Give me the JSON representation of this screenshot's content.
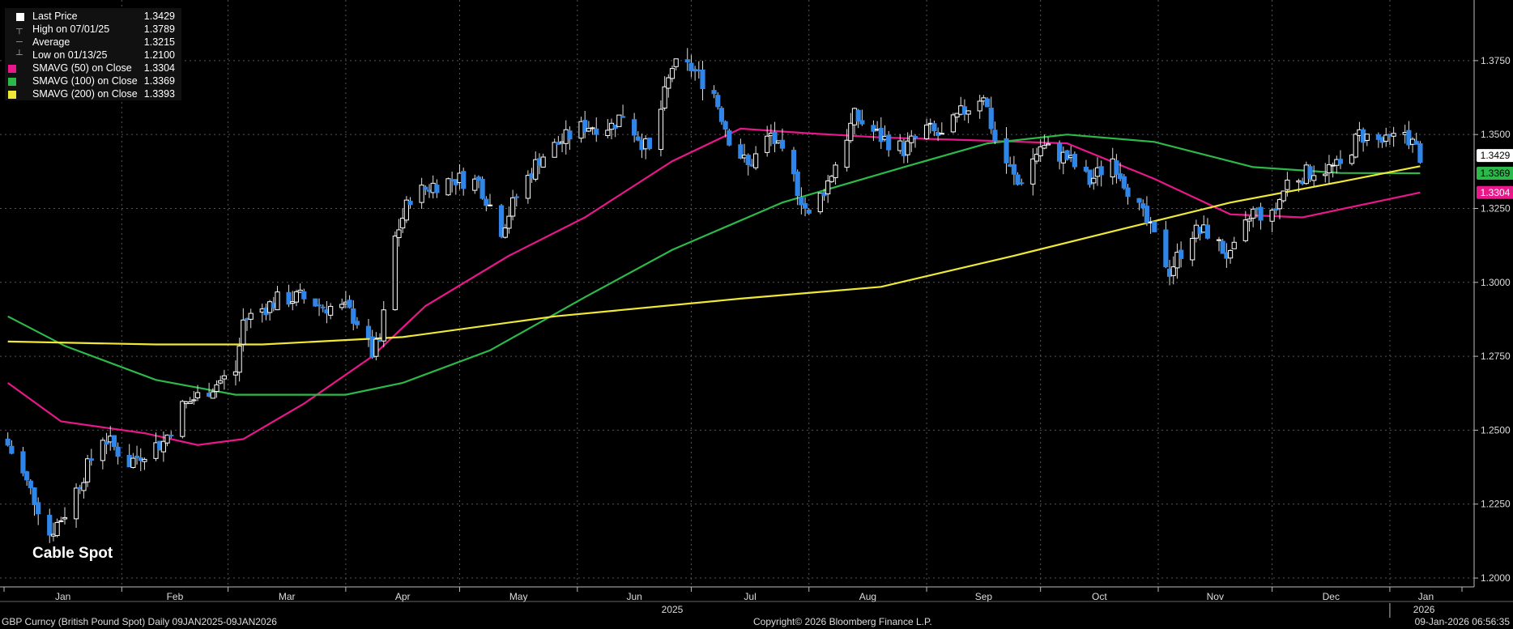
{
  "legend": {
    "rows": [
      {
        "label": "Last Price",
        "value": "1.3429",
        "color": "#ffffff"
      },
      {
        "label": "High on 07/01/25",
        "value": "1.3789"
      },
      {
        "label": "Average",
        "value": "1.3215"
      },
      {
        "label": "Low on 01/13/25",
        "value": "1.2100"
      },
      {
        "label": "SMAVG (50)  on Close",
        "value": "1.3304",
        "color": "#e8178a"
      },
      {
        "label": "SMAVG (100)  on Close",
        "value": "1.3369",
        "color": "#2db84a"
      },
      {
        "label": "SMAVG (200)  on Close",
        "value": "1.3393",
        "color": "#f0e837"
      }
    ]
  },
  "chart_label": "Cable Spot",
  "footer": {
    "left": "GBP Curncy (British Pound Spot) Daily 09JAN2025-09JAN2026",
    "center": "Copyright© 2026 Bloomberg Finance L.P.",
    "right": "09-Jan-2026 06:56:35"
  },
  "chart_data": {
    "type": "candlestick",
    "title": "Cable Spot",
    "x_months": [
      "Jan",
      "Feb",
      "Mar",
      "Apr",
      "May",
      "Jun",
      "Jul",
      "Aug",
      "Sep",
      "Oct",
      "Nov",
      "Dec",
      "Jan"
    ],
    "x_years": [
      "2025",
      "2026"
    ],
    "y_ticks": [
      "1.2000",
      "1.2250",
      "1.2500",
      "1.2750",
      "1.3000",
      "1.3250",
      "1.3500",
      "1.3750"
    ],
    "ylim": [
      1.197,
      1.3955
    ],
    "grid": true,
    "price_path": [
      [
        "2025-01-02",
        1.245
      ],
      [
        "2025-01-06",
        1.235
      ],
      [
        "2025-01-10",
        1.224
      ],
      [
        "2025-01-13",
        1.215
      ],
      [
        "2025-01-17",
        1.222
      ],
      [
        "2025-01-22",
        1.235
      ],
      [
        "2025-01-27",
        1.248
      ],
      [
        "2025-02-03",
        1.239
      ],
      [
        "2025-02-07",
        1.243
      ],
      [
        "2025-02-12",
        1.246
      ],
      [
        "2025-02-17",
        1.258
      ],
      [
        "2025-02-24",
        1.264
      ],
      [
        "2025-03-03",
        1.27
      ],
      [
        "2025-03-05",
        1.287
      ],
      [
        "2025-03-10",
        1.291
      ],
      [
        "2025-03-14",
        1.294
      ],
      [
        "2025-03-20",
        1.295
      ],
      [
        "2025-03-26",
        1.292
      ],
      [
        "2025-04-01",
        1.291
      ],
      [
        "2025-04-04",
        1.287
      ],
      [
        "2025-04-08",
        1.276
      ],
      [
        "2025-04-10",
        1.28
      ],
      [
        "2025-04-14",
        1.315
      ],
      [
        "2025-04-18",
        1.329
      ],
      [
        "2025-04-24",
        1.333
      ],
      [
        "2025-04-30",
        1.335
      ],
      [
        "2025-05-06",
        1.334
      ],
      [
        "2025-05-12",
        1.318
      ],
      [
        "2025-05-16",
        1.329
      ],
      [
        "2025-05-22",
        1.342
      ],
      [
        "2025-05-28",
        1.348
      ],
      [
        "2025-06-03",
        1.353
      ],
      [
        "2025-06-10",
        1.353
      ],
      [
        "2025-06-13",
        1.357
      ],
      [
        "2025-06-20",
        1.344
      ],
      [
        "2025-06-26",
        1.373
      ],
      [
        "2025-07-01",
        1.3725
      ],
      [
        "2025-07-07",
        1.364
      ],
      [
        "2025-07-11",
        1.349
      ],
      [
        "2025-07-16",
        1.339
      ],
      [
        "2025-07-22",
        1.35
      ],
      [
        "2025-07-28",
        1.335
      ],
      [
        "2025-08-01",
        1.322
      ],
      [
        "2025-08-06",
        1.334
      ],
      [
        "2025-08-13",
        1.356
      ],
      [
        "2025-08-20",
        1.349
      ],
      [
        "2025-08-26",
        1.345
      ],
      [
        "2025-09-01",
        1.352
      ],
      [
        "2025-09-05",
        1.349
      ],
      [
        "2025-09-10",
        1.357
      ],
      [
        "2025-09-16",
        1.364
      ],
      [
        "2025-09-19",
        1.348
      ],
      [
        "2025-09-25",
        1.333
      ],
      [
        "2025-10-01",
        1.346
      ],
      [
        "2025-10-08",
        1.342
      ],
      [
        "2025-10-14",
        1.334
      ],
      [
        "2025-10-20",
        1.342
      ],
      [
        "2025-10-24",
        1.332
      ],
      [
        "2025-10-31",
        1.315
      ],
      [
        "2025-11-04",
        1.304
      ],
      [
        "2025-11-10",
        1.317
      ],
      [
        "2025-11-14",
        1.317
      ],
      [
        "2025-11-20",
        1.308
      ],
      [
        "2025-11-26",
        1.324
      ],
      [
        "2025-12-01",
        1.322
      ],
      [
        "2025-12-05",
        1.334
      ],
      [
        "2025-12-12",
        1.338
      ],
      [
        "2025-12-19",
        1.339
      ],
      [
        "2025-12-24",
        1.35
      ],
      [
        "2025-12-31",
        1.347
      ],
      [
        "2026-01-05",
        1.351
      ],
      [
        "2026-01-09",
        1.3429
      ]
    ],
    "series": [
      {
        "name": "SMAVG (50)  on Close",
        "color": "#e8178a",
        "points": [
          [
            "2025-01-02",
            1.266
          ],
          [
            "2025-01-16",
            1.253
          ],
          [
            "2025-02-07",
            1.249
          ],
          [
            "2025-02-21",
            1.245
          ],
          [
            "2025-03-05",
            1.247
          ],
          [
            "2025-03-21",
            1.259
          ],
          [
            "2025-04-08",
            1.275
          ],
          [
            "2025-04-22",
            1.292
          ],
          [
            "2025-05-14",
            1.309
          ],
          [
            "2025-06-03",
            1.322
          ],
          [
            "2025-06-26",
            1.341
          ],
          [
            "2025-07-14",
            1.352
          ],
          [
            "2025-07-31",
            1.3505
          ],
          [
            "2025-08-20",
            1.349
          ],
          [
            "2025-09-15",
            1.348
          ],
          [
            "2025-10-08",
            1.347
          ],
          [
            "2025-10-31",
            1.335
          ],
          [
            "2025-11-20",
            1.323
          ],
          [
            "2025-12-09",
            1.322
          ],
          [
            "2026-01-09",
            1.3304
          ]
        ]
      },
      {
        "name": "SMAVG (100)  on Close",
        "color": "#2db84a",
        "points": [
          [
            "2025-01-02",
            1.2885
          ],
          [
            "2025-01-17",
            1.2785
          ],
          [
            "2025-02-10",
            1.267
          ],
          [
            "2025-03-03",
            1.262
          ],
          [
            "2025-04-01",
            1.262
          ],
          [
            "2025-04-16",
            1.266
          ],
          [
            "2025-05-09",
            1.277
          ],
          [
            "2025-06-03",
            1.295
          ],
          [
            "2025-06-26",
            1.311
          ],
          [
            "2025-07-25",
            1.327
          ],
          [
            "2025-08-26",
            1.339
          ],
          [
            "2025-09-17",
            1.347
          ],
          [
            "2025-10-08",
            1.35
          ],
          [
            "2025-10-31",
            1.3475
          ],
          [
            "2025-11-26",
            1.339
          ],
          [
            "2025-12-19",
            1.337
          ],
          [
            "2026-01-09",
            1.3369
          ]
        ]
      },
      {
        "name": "SMAVG (200)  on Close",
        "color": "#f0e837",
        "points": [
          [
            "2025-01-02",
            1.28
          ],
          [
            "2025-02-10",
            1.279
          ],
          [
            "2025-03-10",
            1.279
          ],
          [
            "2025-04-16",
            1.2815
          ],
          [
            "2025-05-26",
            1.2885
          ],
          [
            "2025-07-14",
            1.2945
          ],
          [
            "2025-08-20",
            1.2985
          ],
          [
            "2025-09-24",
            1.309
          ],
          [
            "2025-10-24",
            1.3185
          ],
          [
            "2025-11-20",
            1.327
          ],
          [
            "2025-12-19",
            1.334
          ],
          [
            "2026-01-09",
            1.3393
          ]
        ]
      }
    ],
    "last_price": 1.3429,
    "tags": [
      {
        "label": "1.3429",
        "value": 1.3429,
        "bg": "#ffffff",
        "fg": "#000000"
      },
      {
        "label": "1.3369",
        "value": 1.3369,
        "bg": "#2db84a",
        "fg": "#000000"
      },
      {
        "label": "1.3304",
        "value": 1.3304,
        "bg": "#e8178a",
        "fg": "#ffffff"
      }
    ],
    "candle_up_color": "#ffffff",
    "candle_down_color": "#2f86e8"
  }
}
